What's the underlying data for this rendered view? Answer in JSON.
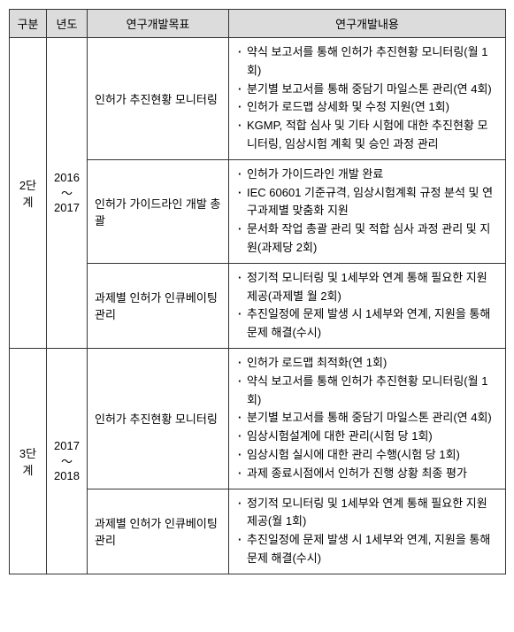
{
  "headers": {
    "gubun": "구분",
    "year": "년도",
    "goal": "연구개발목표",
    "content": "연구개발내용"
  },
  "stages": [
    {
      "name": "2단계",
      "year_range": "2016\n〜\n2017",
      "rows": [
        {
          "goal": "인허가 추진현황 모니터링",
          "items": [
            "약식 보고서를 통해 인허가 추진현황 모니터링(월 1회)",
            "분기별 보고서를 통해 중담기 마일스톤 관리(연 4회)",
            "인허가 로드맵 상세화 및 수정 지원(연 1회)",
            "KGMP, 적합 심사 및 기타 시험에 대한 추진현황 모니터링, 임상시험 계획 및 승인 과정 관리"
          ]
        },
        {
          "goal": "인허가 가이드라인 개발 총괄",
          "items": [
            "인허가 가이드라인 개발 완료",
            "IEC 60601 기준규격, 임상시험계획 규정 분석 및 연구과제별 맞춤화 지원",
            "문서화 작업 총괄 관리 및 적합 심사 과정 관리 및 지원(과제당 2회)"
          ]
        },
        {
          "goal": "과제별 인허가 인큐베이팅 관리",
          "items": [
            "정기적 모니터링 및 1세부와 연계 통해 필요한 지원 제공(과제별 월 2회)",
            "추진일정에 문제 발생 시 1세부와 연계, 지원을 통해 문제 해결(수시)"
          ]
        }
      ]
    },
    {
      "name": "3단계",
      "year_range": "2017\n〜\n2018",
      "rows": [
        {
          "goal": "인허가 추진현황 모니터링",
          "items": [
            "인허가 로드맵 최적화(연 1회)",
            "약식 보고서를 통해 인허가 추진현황 모니터링(월 1회)",
            "분기별 보고서를 통해 중담기 마일스톤 관리(연 4회)",
            "임상시험설계에 대한 관리(시험 당 1회)",
            "임상시험 실시에 대한 관리 수행(시험 당 1회)",
            "과제 종료시점에서 인허가 진행 상황 최종 평가"
          ]
        },
        {
          "goal": "과제별 인허가 인큐베이팅 관리",
          "items": [
            "정기적 모니터링 및 1세부와 연계 통해 필요한 지원 제공(월 1회)",
            "추진일정에 문제 발생 시 1세부와 연계, 지원을 통해 문제 해결(수시)"
          ]
        }
      ]
    }
  ]
}
